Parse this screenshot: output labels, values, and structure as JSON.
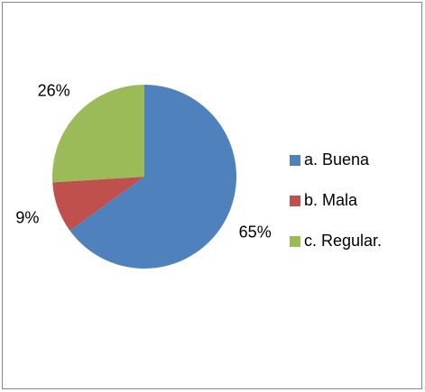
{
  "chart_data": {
    "type": "pie",
    "categories": [
      "a. Buena",
      "b. Mala",
      "c. Regular."
    ],
    "values": [
      65,
      9,
      26
    ],
    "value_labels": [
      "65%",
      "9%",
      "26%"
    ],
    "colors": [
      "#4f81bd",
      "#c0504d",
      "#9bbb59"
    ],
    "legend": "right"
  }
}
